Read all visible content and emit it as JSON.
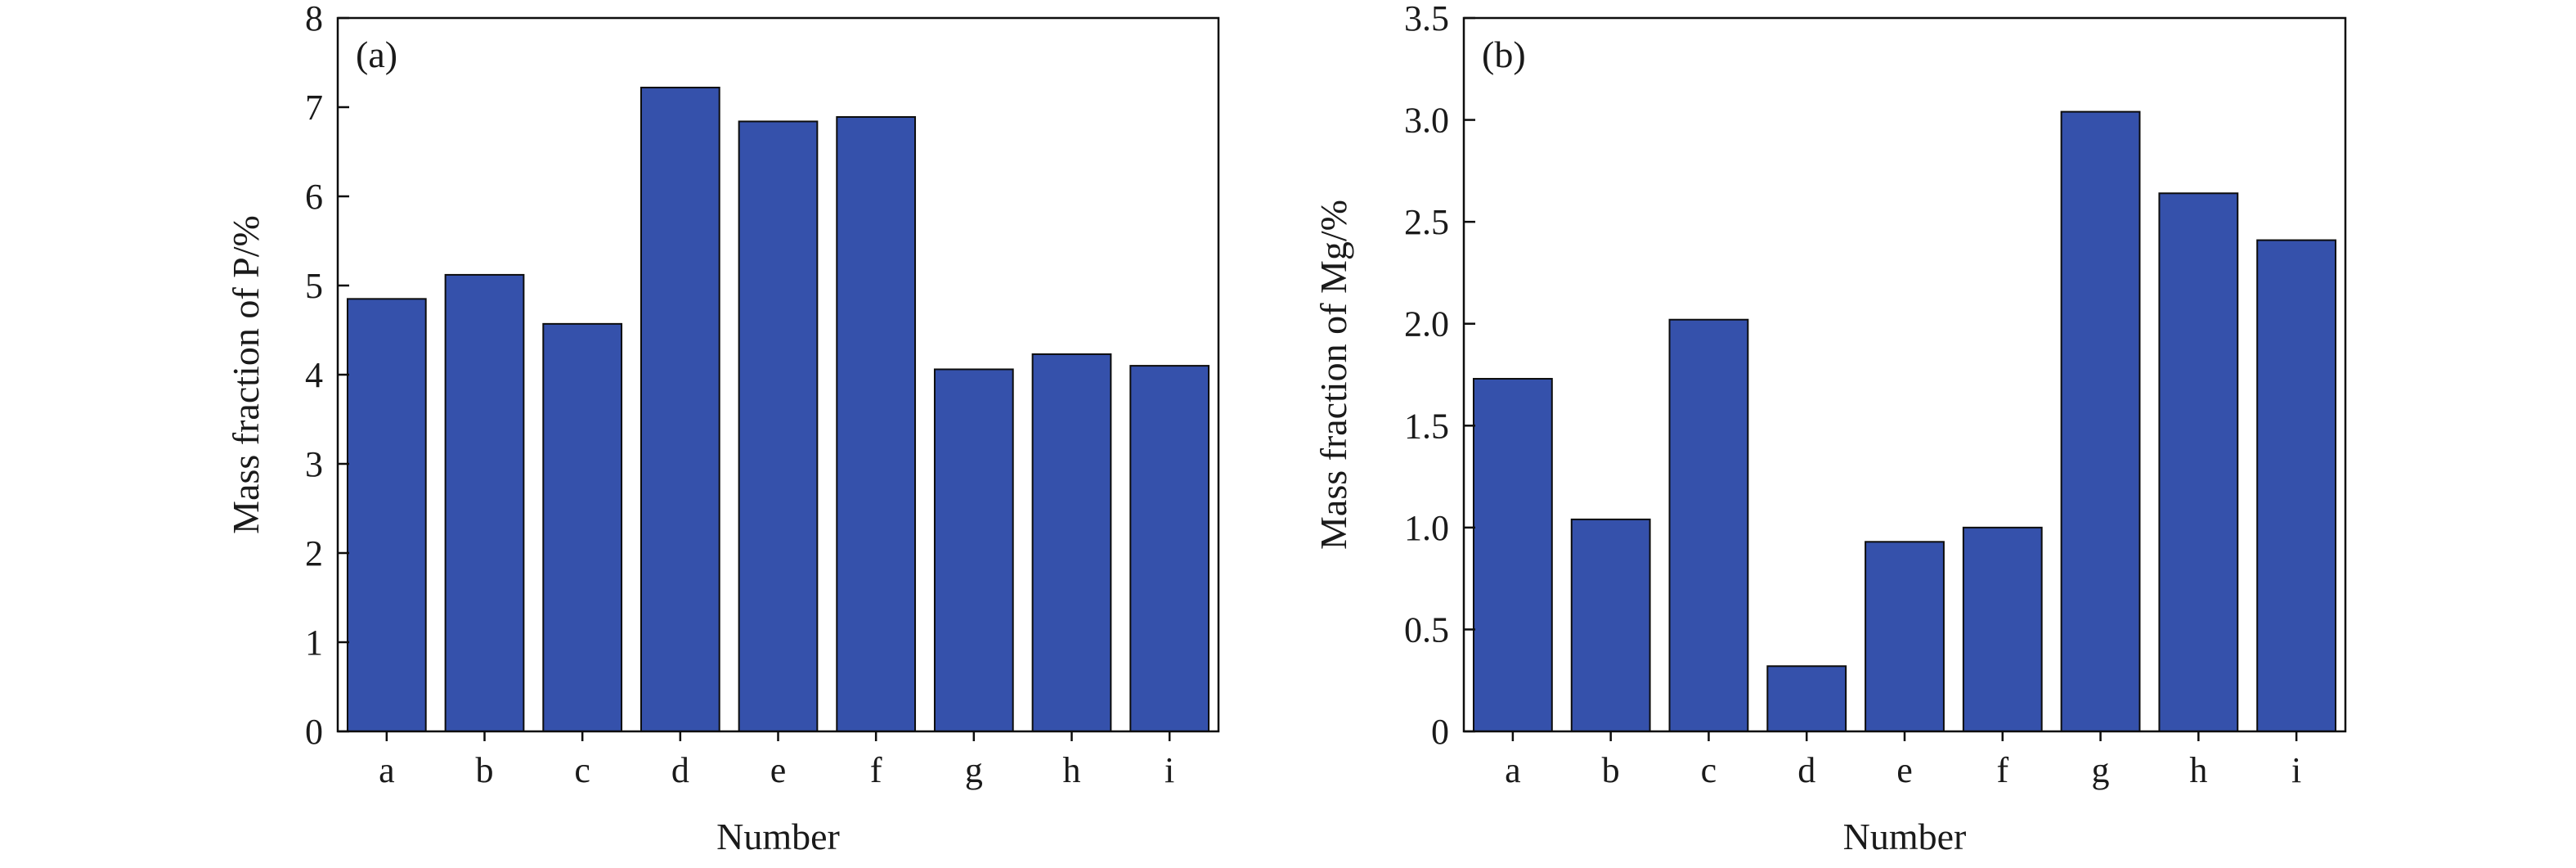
{
  "colors": {
    "bar_fill": "#3551ab",
    "bar_stroke": "#0d0d0d",
    "axis": "#0d0d0d"
  },
  "chart_data": [
    {
      "type": "bar",
      "panel_label": "(a)",
      "title": "",
      "xlabel": "Number",
      "ylabel": "Mass fraction of P/%",
      "categories": [
        "a",
        "b",
        "c",
        "d",
        "e",
        "f",
        "g",
        "h",
        "i"
      ],
      "values": [
        4.85,
        5.12,
        4.57,
        7.22,
        6.84,
        6.89,
        4.06,
        4.23,
        4.1
      ],
      "ylim": [
        0,
        8
      ],
      "yticks": [
        0,
        1,
        2,
        3,
        4,
        5,
        6,
        7,
        8
      ],
      "ytick_labels": [
        "0",
        "1",
        "2",
        "3",
        "4",
        "5",
        "6",
        "7",
        "8"
      ],
      "grid": false,
      "legend": "none"
    },
    {
      "type": "bar",
      "panel_label": "(b)",
      "title": "",
      "xlabel": "Number",
      "ylabel": "Mass fraction of Mg/%",
      "categories": [
        "a",
        "b",
        "c",
        "d",
        "e",
        "f",
        "g",
        "h",
        "i"
      ],
      "values": [
        1.73,
        1.04,
        2.02,
        0.32,
        0.93,
        1.0,
        3.04,
        2.64,
        2.41
      ],
      "ylim": [
        0,
        3.5
      ],
      "yticks": [
        0,
        0.5,
        1.0,
        1.5,
        2.0,
        2.5,
        3.0,
        3.5
      ],
      "ytick_labels": [
        "0",
        "0.5",
        "1.0",
        "1.5",
        "2.0",
        "2.5",
        "3.0",
        "3.5"
      ],
      "grid": false,
      "legend": "none"
    }
  ]
}
